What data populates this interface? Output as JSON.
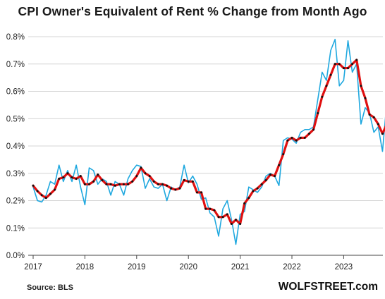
{
  "chart_data": {
    "type": "line",
    "title": "CPI Owner's Equivalent of Rent % Change from Month Ago",
    "xlabel": "",
    "ylabel": "",
    "x_tick_labels": [
      "2017",
      "2018",
      "2019",
      "2020",
      "2021",
      "2022",
      "2023"
    ],
    "y_tick_labels": [
      "0.0%",
      "0.1%",
      "0.2%",
      "0.3%",
      "0.4%",
      "0.5%",
      "0.6%",
      "0.7%",
      "0.8%"
    ],
    "ylim": [
      0,
      0.85
    ],
    "grid": "horizontal",
    "start": "2017-01",
    "series": [
      {
        "color": "#1fa8df",
        "values": [
          0.25,
          0.2,
          0.195,
          0.22,
          0.27,
          0.26,
          0.33,
          0.27,
          0.31,
          0.27,
          0.33,
          0.25,
          0.185,
          0.32,
          0.31,
          0.26,
          0.28,
          0.27,
          0.22,
          0.27,
          0.26,
          0.22,
          0.28,
          0.31,
          0.33,
          0.325,
          0.245,
          0.28,
          0.25,
          0.245,
          0.26,
          0.2,
          0.25,
          0.24,
          0.25,
          0.33,
          0.265,
          0.29,
          0.26,
          0.205,
          0.21,
          0.155,
          0.14,
          0.07,
          0.17,
          0.2,
          0.13,
          0.04,
          0.15,
          0.16,
          0.25,
          0.24,
          0.23,
          0.25,
          0.29,
          0.3,
          0.29,
          0.255,
          0.42,
          0.43,
          0.425,
          0.41,
          0.45,
          0.46,
          0.46,
          0.47,
          0.57,
          0.67,
          0.64,
          0.75,
          0.79,
          0.62,
          0.64,
          0.785,
          0.67,
          0.7,
          0.48,
          0.54,
          0.52,
          0.45,
          0.47,
          0.38,
          0.56,
          0.4,
          0.5
        ]
      },
      {
        "color": "#e01010",
        "values": [
          0.255,
          0.235,
          0.22,
          0.21,
          0.225,
          0.24,
          0.28,
          0.285,
          0.3,
          0.285,
          0.28,
          0.29,
          0.26,
          0.26,
          0.27,
          0.295,
          0.275,
          0.26,
          0.26,
          0.255,
          0.26,
          0.26,
          0.26,
          0.27,
          0.29,
          0.32,
          0.3,
          0.29,
          0.27,
          0.26,
          0.26,
          0.255,
          0.245,
          0.24,
          0.245,
          0.275,
          0.27,
          0.27,
          0.23,
          0.23,
          0.17,
          0.17,
          0.165,
          0.14,
          0.14,
          0.15,
          0.115,
          0.13,
          0.115,
          0.19,
          0.21,
          0.235,
          0.245,
          0.26,
          0.275,
          0.295,
          0.29,
          0.33,
          0.37,
          0.42,
          0.43,
          0.42,
          0.43,
          0.43,
          0.445,
          0.46,
          0.52,
          0.58,
          0.62,
          0.66,
          0.7,
          0.7,
          0.685,
          0.685,
          0.7,
          0.715,
          0.62,
          0.575,
          0.515,
          0.505,
          0.48,
          0.445,
          0.48,
          0.455,
          0.49
        ]
      }
    ]
  },
  "footer": {
    "source": "Source: BLS",
    "brand": "WOLFSTREET.com"
  }
}
